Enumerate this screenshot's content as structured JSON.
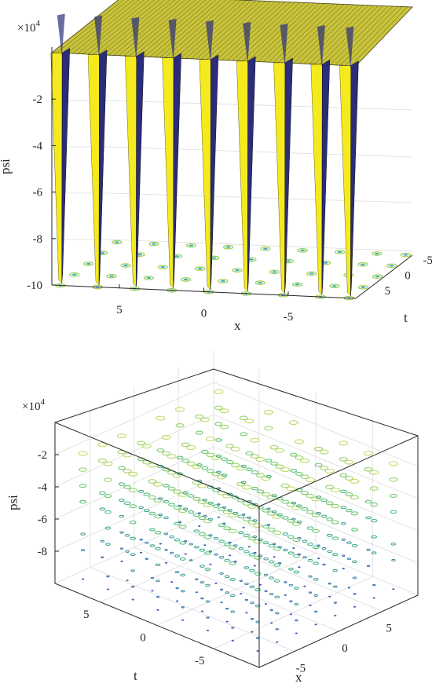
{
  "chart_data": [
    {
      "type": "surface",
      "title": "",
      "xlabel": "x",
      "ylabel": "t",
      "zlabel": "psi",
      "z_multiplier": "×10",
      "z_multiplier_exp": "4",
      "x_ticks": [
        "5",
        "0",
        "-5"
      ],
      "t_ticks": [
        "-5",
        "0",
        "5"
      ],
      "z_ticks": [
        "-2",
        "-4",
        "-6",
        "-8",
        "-10"
      ],
      "xlim": [
        -9,
        9
      ],
      "tlim": [
        -7,
        7
      ],
      "zlim": [
        -10,
        0
      ],
      "surface_plateau_z": 0,
      "spike_min_z": -9.9,
      "spike_x_positions": [
        8.5,
        6.3,
        4.1,
        1.9,
        -0.3,
        -2.5,
        -4.7,
        -6.9,
        -8.6
      ],
      "colors": {
        "plateau": "#c8c33a",
        "spike_face": "#f5ea1e",
        "spike_shadow": "#2b2d7a"
      }
    },
    {
      "type": "contour3",
      "title": "",
      "xlabel": "x",
      "ylabel": "t",
      "zlabel": "psi",
      "z_multiplier": "×10",
      "z_multiplier_exp": "4",
      "x_ticks": [
        "-5",
        "0",
        "5"
      ],
      "t_ticks": [
        "5",
        "0",
        "-5"
      ],
      "z_ticks": [
        "-2",
        "-4",
        "-6",
        "-8"
      ],
      "xlim": [
        -9,
        9
      ],
      "tlim": [
        -9,
        9
      ],
      "zlim": [
        -10,
        0
      ],
      "grid": true,
      "colors": {
        "high": "#f2e64b",
        "mid": "#35b779",
        "low": "#3b52c4"
      }
    }
  ]
}
